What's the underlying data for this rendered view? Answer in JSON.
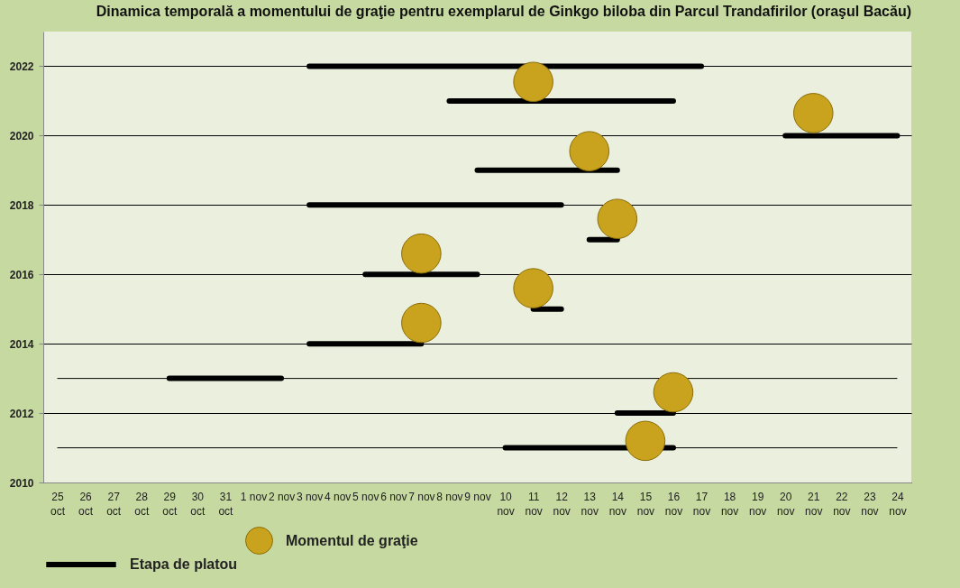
{
  "chart_data": {
    "type": "scatter",
    "title": "Dinamica temporală a momentului de graţie pentru exemplarul de Ginkgo biloba din Parcul Trandafirilor (oraşul Bacău)",
    "categories": [
      "25 oct",
      "26 oct",
      "27 oct",
      "28 oct",
      "29 oct",
      "30 oct",
      "31 oct",
      "1 nov",
      "2 nov",
      "3 nov",
      "4 nov",
      "5 nov",
      "6 nov",
      "7 nov",
      "8 nov",
      "9 nov",
      "10 nov",
      "11 nov",
      "12 nov",
      "13 nov",
      "14 nov",
      "15 nov",
      "16 nov",
      "17 nov",
      "18 nov",
      "19 nov",
      "20 nov",
      "21 nov",
      "22 nov",
      "23 nov",
      "24 nov"
    ],
    "ylim": [
      2010,
      2023
    ],
    "yticks": [
      2010,
      2012,
      2014,
      2016,
      2018,
      2020,
      2022
    ],
    "grid": "y",
    "legend": "bottom",
    "ref_lines": [
      {
        "axis": "y",
        "value": 2013
      },
      {
        "axis": "y",
        "value": 2011
      }
    ],
    "series": [
      {
        "name": "Momentul de graţie",
        "type": "scatter",
        "marker": "circle",
        "color": "#c9a21e",
        "x": [
          "11 nov",
          "21 nov",
          "13 nov",
          "14 nov",
          "7 nov",
          "11 nov",
          "7 nov",
          "16 nov",
          "15 nov"
        ],
        "values": [
          2021.55,
          2020.65,
          2019.55,
          2017.6,
          2016.6,
          2015.6,
          2014.6,
          2012.6,
          2011.2
        ]
      },
      {
        "name": "Etapa de platou",
        "type": "line",
        "color": "#000000",
        "x": [
          "3 nov",
          "17 nov",
          null,
          "8 nov",
          "16 nov",
          null,
          "20 nov",
          "24 nov",
          null,
          "9 nov",
          "14 nov",
          null,
          "3 nov",
          "12 nov",
          null,
          "13 nov",
          "14 nov",
          null,
          "5 nov",
          "9 nov",
          null,
          "11 nov",
          "12 nov",
          null,
          "3 nov",
          "7 nov",
          null,
          "29 oct",
          "2 nov",
          null,
          "14 nov",
          "16 nov",
          null,
          "10 nov",
          "16 nov"
        ],
        "values": [
          2022,
          2022,
          null,
          2021,
          2021,
          null,
          2020,
          2020,
          null,
          2019,
          2019,
          null,
          2018,
          2018,
          null,
          2017,
          2017,
          null,
          2016,
          2016,
          null,
          2015,
          2015,
          null,
          2014,
          2014,
          null,
          2013,
          2013,
          null,
          2012,
          2012,
          null,
          2011,
          2011
        ]
      }
    ]
  }
}
